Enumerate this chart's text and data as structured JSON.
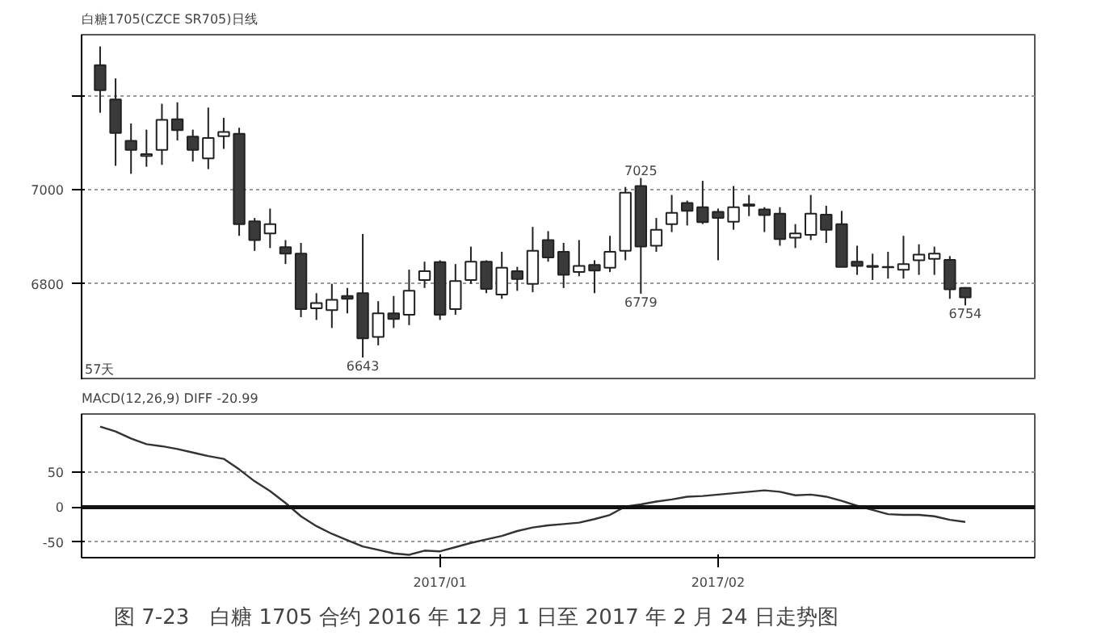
{
  "chart_data": [
    {
      "type": "candlestick",
      "title": "白糖1705(CZCE SR705)日线",
      "categories": [
        null,
        null,
        null,
        null,
        null,
        null,
        null,
        null,
        null,
        null,
        null,
        null,
        null,
        null,
        null,
        null,
        null,
        null,
        null,
        null,
        null,
        null,
        null,
        null,
        null,
        null,
        null,
        null,
        null,
        null,
        null,
        null,
        null,
        null,
        null,
        null,
        null,
        null,
        null,
        null,
        null,
        null,
        null,
        null,
        null,
        null,
        null,
        null,
        null,
        null,
        null,
        null,
        null,
        null,
        null,
        null,
        null
      ],
      "ohlc": [
        [
          7265,
          7305,
          7164,
          7212
        ],
        [
          7192,
          7237,
          7051,
          7121
        ],
        [
          7104,
          7141,
          7034,
          7085
        ],
        [
          7072,
          7128,
          7049,
          7076
        ],
        [
          7085,
          7183,
          7053,
          7149
        ],
        [
          7150,
          7186,
          7105,
          7127
        ],
        [
          7113,
          7128,
          7060,
          7085
        ],
        [
          7067,
          7175,
          7044,
          7110
        ],
        [
          7114,
          7153,
          7087,
          7123
        ],
        [
          7119,
          7132,
          6902,
          6927
        ],
        [
          6933,
          6940,
          6870,
          6893
        ],
        [
          6907,
          6960,
          6876,
          6927
        ],
        [
          6878,
          6893,
          6842,
          6864
        ],
        [
          6864,
          6887,
          6729,
          6746
        ],
        [
          6748,
          6780,
          6723,
          6759
        ],
        [
          6744,
          6800,
          6706,
          6766
        ],
        [
          6774,
          6791,
          6737,
          6768
        ],
        [
          6780,
          6906,
          6643,
          6684
        ],
        [
          6687,
          6763,
          6669,
          6737
        ],
        [
          6737,
          6774,
          6706,
          6725
        ],
        [
          6734,
          6830,
          6712,
          6785
        ],
        [
          6808,
          6847,
          6791,
          6827
        ],
        [
          6846,
          6850,
          6723,
          6734
        ],
        [
          6746,
          6842,
          6734,
          6806
        ],
        [
          6808,
          6879,
          6800,
          6847
        ],
        [
          6847,
          6850,
          6780,
          6789
        ],
        [
          6777,
          6868,
          6768,
          6834
        ],
        [
          6827,
          6836,
          6785,
          6810
        ],
        [
          6800,
          6921,
          6782,
          6870
        ],
        [
          6893,
          6912,
          6847,
          6856
        ],
        [
          6868,
          6887,
          6791,
          6819
        ],
        [
          6825,
          6893,
          6816,
          6838
        ],
        [
          6840,
          6850,
          6780,
          6828
        ],
        [
          6834,
          6902,
          6825,
          6868
        ],
        [
          6870,
          7006,
          6850,
          6994
        ],
        [
          7008,
          7025,
          6779,
          6879
        ],
        [
          6881,
          6940,
          6868,
          6915
        ],
        [
          6927,
          6989,
          6910,
          6951
        ],
        [
          6972,
          6977,
          6924,
          6955
        ],
        [
          6963,
          7019,
          6927,
          6931
        ],
        [
          6953,
          6960,
          6850,
          6940
        ],
        [
          6932,
          7008,
          6915,
          6963
        ],
        [
          6969,
          6989,
          6944,
          6966
        ],
        [
          6958,
          6963,
          6910,
          6946
        ],
        [
          6949,
          6963,
          6881,
          6895
        ],
        [
          6898,
          6927,
          6876,
          6907
        ],
        [
          6904,
          6989,
          6893,
          6949
        ],
        [
          6947,
          6966,
          6887,
          6915
        ],
        [
          6927,
          6955,
          6836,
          6836
        ],
        [
          6847,
          6881,
          6819,
          6838
        ],
        [
          6838,
          6864,
          6808,
          6836
        ],
        [
          6836,
          6868,
          6811,
          6835
        ],
        [
          6830,
          6902,
          6811,
          6842
        ],
        [
          6850,
          6884,
          6819,
          6862
        ],
        [
          6853,
          6879,
          6819,
          6864
        ],
        [
          6851,
          6859,
          6768,
          6788
        ],
        [
          6791,
          6793,
          6754,
          6771
        ]
      ],
      "colors": [
        "#3a3a3a",
        "#3a3a3a",
        "#3a3a3a",
        "#ffffff",
        "#ffffff",
        "#3a3a3a",
        "#3a3a3a",
        "#ffffff",
        "#ffffff",
        "#3a3a3a",
        "#3a3a3a",
        "#ffffff",
        "#3a3a3a",
        "#3a3a3a",
        "#ffffff",
        "#ffffff",
        "#3a3a3a",
        "#3a3a3a",
        "#ffffff",
        "#3a3a3a",
        "#ffffff",
        "#ffffff",
        "#3a3a3a",
        "#ffffff",
        "#ffffff",
        "#3a3a3a",
        "#ffffff",
        "#3a3a3a",
        "#ffffff",
        "#3a3a3a",
        "#3a3a3a",
        "#ffffff",
        "#3a3a3a",
        "#ffffff",
        "#ffffff",
        "#3a3a3a",
        "#ffffff",
        "#ffffff",
        "#3a3a3a",
        "#3a3a3a",
        "#3a3a3a",
        "#ffffff",
        "#3a3a3a",
        "#3a3a3a",
        "#3a3a3a",
        "#ffffff",
        "#ffffff",
        "#3a3a3a",
        "#3a3a3a",
        "#3a3a3a",
        "#3a3a3a",
        "#3a3a3a",
        "#ffffff",
        "#ffffff",
        "#ffffff",
        "#3a3a3a",
        "#3a3a3a"
      ],
      "ylim": [
        6595,
        7330
      ],
      "yticks": [
        6800,
        7000,
        {
          "value": 7200,
          "label": null
        }
      ],
      "grid": "y",
      "tick_labels": "y",
      "annotations": [
        "57天",
        {
          "text": "7025",
          "y": 7025
        },
        {
          "text": "6779",
          "y": 6779
        },
        {
          "text": "6643",
          "y": 6643
        },
        {
          "text": "6754",
          "y": 6754
        }
      ]
    },
    {
      "type": "line",
      "title": "MACD(12,26,9) DIFF -20.99",
      "categories": [
        null,
        null,
        null,
        null,
        null,
        null,
        null,
        null,
        null,
        null,
        null,
        null,
        null,
        null,
        null,
        null,
        null,
        null,
        null,
        null,
        null,
        null,
        "2017/01",
        null,
        null,
        null,
        null,
        null,
        null,
        null,
        null,
        null,
        null,
        null,
        null,
        null,
        null,
        null,
        null,
        null,
        "2017/02",
        null,
        null,
        null,
        null,
        null,
        null,
        null,
        null,
        null,
        null,
        null,
        null,
        null,
        null,
        null,
        null
      ],
      "series": [
        {
          "color": "#333333",
          "values": [
            115,
            108,
            98,
            90,
            87,
            83,
            78,
            73,
            69,
            54,
            37,
            23,
            6,
            -13,
            -27,
            -38,
            -47,
            -56,
            -61,
            -66,
            -68,
            -62,
            -63,
            -57,
            -51,
            -46,
            -41,
            -34,
            -29,
            -26,
            -24,
            -22,
            -17,
            -11,
            1,
            4,
            8,
            11,
            15,
            16,
            18,
            20,
            22,
            24,
            22,
            17,
            18,
            15,
            9,
            2,
            -4,
            -10,
            -11,
            -11,
            -13,
            -18,
            -21
          ]
        }
      ],
      "ylim": [
        -72,
        133
      ],
      "yticks": [
        -50,
        0,
        50
      ],
      "grid": "y",
      "ref_lines": [
        {
          "axis": "y",
          "value": 0,
          "color": "#111111"
        }
      ],
      "annotations": [
        "图 7-23　白糖 1705 合约 2016 年 12 月 1 日至 2017 年 2 月 24 日走势图"
      ]
    }
  ]
}
